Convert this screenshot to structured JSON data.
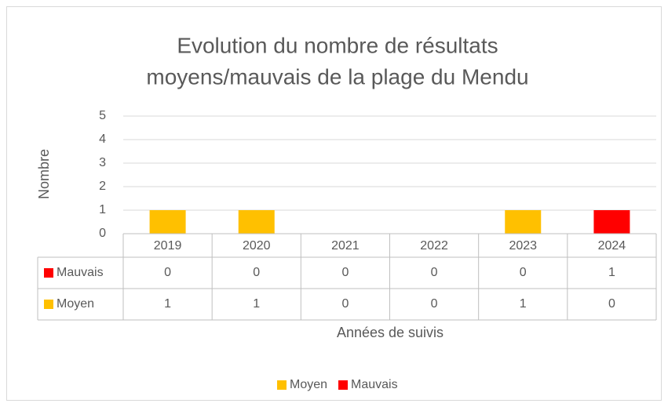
{
  "chart_data": {
    "type": "stacked_bar",
    "title": [
      "Evolution du nombre de résultats",
      "moyens/mauvais de la plage du Mendu"
    ],
    "x_label": "Années de suivis",
    "y_label": "Nombre",
    "categories": [
      "2019",
      "2020",
      "2021",
      "2022",
      "2023",
      "2024"
    ],
    "series": [
      {
        "name": "Moyen",
        "color": "#FFC000",
        "values": [
          1,
          1,
          0,
          0,
          1,
          0
        ]
      },
      {
        "name": "Mauvais",
        "color": "#FF0000",
        "values": [
          0,
          0,
          0,
          0,
          0,
          1
        ]
      }
    ],
    "ylim": [
      0,
      5
    ],
    "yticks": [
      0,
      1,
      2,
      3,
      4,
      5
    ],
    "grid": true,
    "legend": "bottom",
    "data_table": true
  }
}
